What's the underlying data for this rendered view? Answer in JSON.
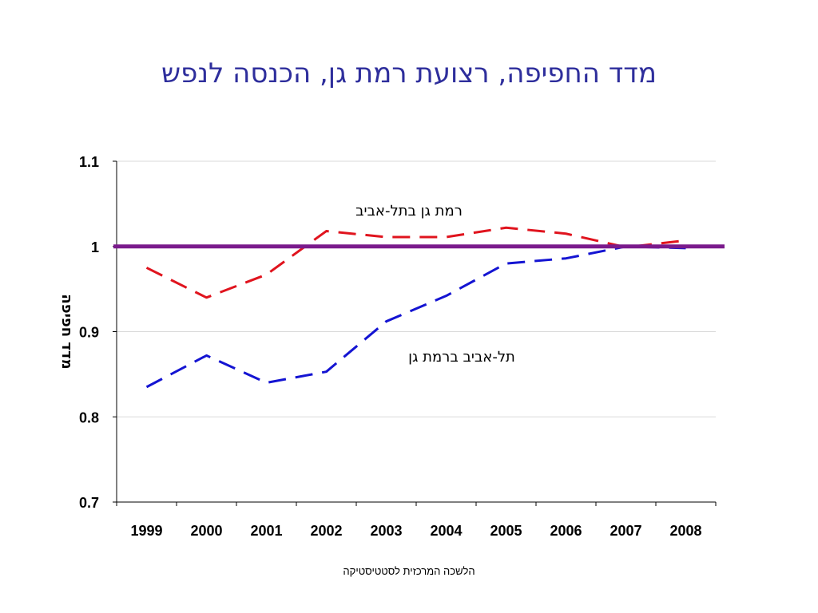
{
  "slide": {
    "title": "מדד החפיפה, רצועת רמת גן, הכנסה לנפש",
    "footer": "הלשכה המרכזית לסטטיסטיקה"
  },
  "colors": {
    "title": "#2e2e9c",
    "series_ramat_gan_in_tel_aviv": "#e0141e",
    "series_tel_aviv_in_ramat_gan": "#1414d2",
    "reference_line": "#7a1a8c",
    "grid": "#d9d9d9"
  },
  "chart_data": {
    "type": "line",
    "title": "",
    "xlabel": "",
    "ylabel": "מדד חפיפה",
    "categories": [
      "1999",
      "2000",
      "2001",
      "2002",
      "2003",
      "2004",
      "2005",
      "2006",
      "2007",
      "2008"
    ],
    "ylim": [
      0.7,
      1.1
    ],
    "yticks": [
      0.7,
      0.8,
      0.9,
      1,
      1.1
    ],
    "ytick_labels": [
      "0.7",
      "0.8",
      "0.9",
      "1",
      "1.1"
    ],
    "grid": true,
    "series": [
      {
        "name": "רמת גן בתל-אביב",
        "line_style": "dashed",
        "color": "#e0141e",
        "values": [
          0.975,
          0.94,
          0.967,
          1.018,
          1.011,
          1.011,
          1.022,
          1.015,
          0.999,
          1.007
        ]
      },
      {
        "name": "תל-אביב ברמת גן",
        "line_style": "dashed",
        "color": "#1414d2",
        "values": [
          0.835,
          0.872,
          0.84,
          0.853,
          0.912,
          0.942,
          0.98,
          0.986,
          1.0,
          0.998
        ]
      }
    ],
    "reference_line": {
      "y": 1,
      "color": "#7a1a8c"
    }
  }
}
